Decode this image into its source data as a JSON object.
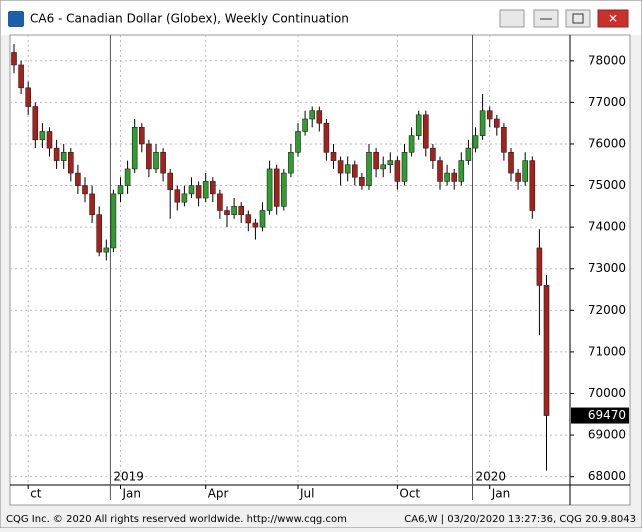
{
  "window": {
    "title": "CA6 - Canadian Dollar (Globex), Weekly Continuation"
  },
  "footer": {
    "left": "CQG Inc. © 2020 All rights reserved worldwide. http://www.cqg.com",
    "right": "CA6,W | 03/20/2020 13:27:36, CQG 20.9.8043"
  },
  "chart_data": {
    "type": "candlestick",
    "up_color": "#2e9e2e",
    "down_color": "#a8201a",
    "grid": true,
    "ylim": [
      67800,
      78620
    ],
    "yticks": [
      68000,
      69000,
      70000,
      71000,
      72000,
      73000,
      74000,
      75000,
      76000,
      77000,
      78000
    ],
    "categories": [
      null,
      null,
      "ct",
      null,
      null,
      null,
      null,
      null,
      null,
      null,
      null,
      null,
      null,
      null,
      null,
      "Jan",
      null,
      null,
      null,
      null,
      null,
      null,
      null,
      null,
      null,
      null,
      null,
      "Apr",
      null,
      null,
      null,
      null,
      null,
      null,
      null,
      null,
      null,
      null,
      null,
      null,
      "Jul",
      null,
      null,
      null,
      null,
      null,
      null,
      null,
      null,
      null,
      null,
      null,
      null,
      null,
      "Oct",
      null,
      null,
      null,
      null,
      null,
      null,
      null,
      null,
      null,
      null,
      null,
      null,
      "Jan",
      null,
      null,
      null,
      null,
      null,
      null,
      null,
      null
    ],
    "years": [
      null,
      null,
      null,
      null,
      null,
      null,
      null,
      null,
      null,
      null,
      null,
      null,
      null,
      null,
      "2019",
      null,
      null,
      null,
      null,
      null,
      null,
      null,
      null,
      null,
      null,
      null,
      null,
      null,
      null,
      null,
      null,
      null,
      null,
      null,
      null,
      null,
      null,
      null,
      null,
      null,
      null,
      null,
      null,
      null,
      null,
      null,
      null,
      null,
      null,
      null,
      null,
      null,
      null,
      null,
      null,
      null,
      null,
      null,
      null,
      null,
      null,
      null,
      null,
      null,
      null,
      "2020",
      null,
      null,
      null,
      null,
      null,
      null,
      null,
      null,
      null,
      null
    ],
    "ohlc": [
      [
        78200,
        78400,
        77700,
        77900
      ],
      [
        77900,
        78000,
        77200,
        77350
      ],
      [
        77350,
        77500,
        76700,
        76900
      ],
      [
        76900,
        77000,
        75900,
        76100
      ],
      [
        76100,
        76500,
        75900,
        76300
      ],
      [
        76300,
        76400,
        75700,
        75900
      ],
      [
        75900,
        76100,
        75400,
        75600
      ],
      [
        75600,
        76000,
        75400,
        75800
      ],
      [
        75800,
        75900,
        75100,
        75300
      ],
      [
        75300,
        75500,
        74800,
        75000
      ],
      [
        75000,
        75200,
        74600,
        74800
      ],
      [
        74800,
        75000,
        74100,
        74300
      ],
      [
        74300,
        74500,
        73300,
        73400
      ],
      [
        73400,
        73700,
        73200,
        73500
      ],
      [
        73500,
        74900,
        73400,
        74800
      ],
      [
        74800,
        75200,
        74600,
        75000
      ],
      [
        75000,
        75600,
        74800,
        75400
      ],
      [
        75400,
        76600,
        75300,
        76400
      ],
      [
        76400,
        76500,
        75800,
        76000
      ],
      [
        76000,
        76100,
        75200,
        75400
      ],
      [
        75400,
        76000,
        75300,
        75800
      ],
      [
        75800,
        75900,
        75100,
        75300
      ],
      [
        75300,
        75400,
        74200,
        74900
      ],
      [
        74900,
        75000,
        74400,
        74600
      ],
      [
        74600,
        75000,
        74500,
        74800
      ],
      [
        74800,
        75200,
        74700,
        75000
      ],
      [
        75000,
        75100,
        74500,
        74700
      ],
      [
        74700,
        75300,
        74600,
        75100
      ],
      [
        75100,
        75200,
        74600,
        74800
      ],
      [
        74800,
        74900,
        74200,
        74400
      ],
      [
        74400,
        74500,
        74000,
        74300
      ],
      [
        74300,
        74700,
        74200,
        74500
      ],
      [
        74500,
        74600,
        74100,
        74300
      ],
      [
        74300,
        74400,
        73900,
        74100
      ],
      [
        74100,
        74200,
        73700,
        74000
      ],
      [
        74000,
        74600,
        73900,
        74400
      ],
      [
        74400,
        75600,
        74300,
        75400
      ],
      [
        75400,
        75500,
        74300,
        74500
      ],
      [
        74500,
        75400,
        74400,
        75300
      ],
      [
        75300,
        76000,
        75200,
        75800
      ],
      [
        75800,
        76500,
        75700,
        76300
      ],
      [
        76300,
        76800,
        76200,
        76600
      ],
      [
        76600,
        76900,
        76400,
        76800
      ],
      [
        76800,
        76900,
        76300,
        76500
      ],
      [
        76500,
        76600,
        75600,
        75800
      ],
      [
        75800,
        76000,
        75400,
        75600
      ],
      [
        75600,
        75700,
        75000,
        75300
      ],
      [
        75300,
        75700,
        75100,
        75500
      ],
      [
        75500,
        75600,
        75000,
        75200
      ],
      [
        75200,
        75300,
        74900,
        75000
      ],
      [
        75000,
        76000,
        74900,
        75800
      ],
      [
        75800,
        75900,
        75200,
        75400
      ],
      [
        75400,
        75700,
        75200,
        75500
      ],
      [
        75500,
        75800,
        75300,
        75600
      ],
      [
        75600,
        75700,
        74900,
        75100
      ],
      [
        75100,
        76000,
        75000,
        75800
      ],
      [
        75800,
        76400,
        75700,
        76200
      ],
      [
        76200,
        76800,
        76100,
        76700
      ],
      [
        76700,
        76800,
        75700,
        75900
      ],
      [
        75900,
        76000,
        75400,
        75600
      ],
      [
        75600,
        75700,
        74900,
        75100
      ],
      [
        75100,
        75500,
        75000,
        75300
      ],
      [
        75300,
        75400,
        74900,
        75100
      ],
      [
        75100,
        75800,
        75000,
        75600
      ],
      [
        75600,
        76100,
        75500,
        75900
      ],
      [
        75900,
        76400,
        75800,
        76200
      ],
      [
        76200,
        77200,
        76100,
        76800
      ],
      [
        76800,
        76900,
        76400,
        76600
      ],
      [
        76600,
        76700,
        76200,
        76400
      ],
      [
        76400,
        76500,
        75600,
        75800
      ],
      [
        75800,
        75900,
        75100,
        75300
      ],
      [
        75300,
        75400,
        74900,
        75100
      ],
      [
        75100,
        75800,
        75000,
        75600
      ],
      [
        75600,
        75700,
        74200,
        74400
      ],
      [
        73500,
        73950,
        71400,
        72600
      ],
      [
        72600,
        72850,
        68150,
        69470
      ]
    ]
  }
}
